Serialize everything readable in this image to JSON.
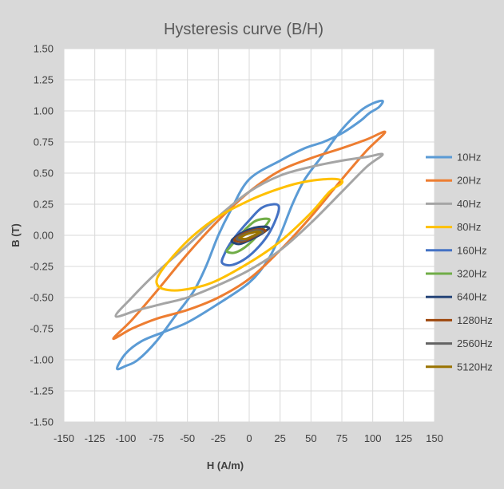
{
  "chart_data": {
    "type": "line",
    "title": "Hysteresis curve (B/H)",
    "xlabel": "H (A/m)",
    "ylabel": "B (T)",
    "xlim": [
      -150,
      150
    ],
    "ylim": [
      -1.5,
      1.5
    ],
    "x_ticks": [
      "-150",
      "-125",
      "-100",
      "-75",
      "-50",
      "-25",
      "0",
      "25",
      "50",
      "75",
      "100",
      "125",
      "150"
    ],
    "y_ticks": [
      "1.50",
      "1.25",
      "1.00",
      "0.75",
      "0.50",
      "0.25",
      "0.00",
      "-0.25",
      "-0.50",
      "-0.75",
      "-1.00",
      "-1.25",
      "-1.50"
    ],
    "grid": true,
    "legend_position": "right",
    "series": [
      {
        "name": "10Hz",
        "color": "#5b9bd5",
        "points": [
          [
            -107,
            -1.07
          ],
          [
            -100,
            -0.95
          ],
          [
            -87,
            -0.85
          ],
          [
            -70,
            -0.78
          ],
          [
            -50,
            -0.7
          ],
          [
            -25,
            -0.55
          ],
          [
            0,
            -0.38
          ],
          [
            15,
            -0.2
          ],
          [
            25,
            0.0
          ],
          [
            35,
            0.25
          ],
          [
            45,
            0.45
          ],
          [
            60,
            0.65
          ],
          [
            75,
            0.85
          ],
          [
            90,
            1.0
          ],
          [
            100,
            1.06
          ],
          [
            108,
            1.08
          ],
          [
            105,
            1.03
          ],
          [
            97,
            0.98
          ],
          [
            90,
            0.92
          ],
          [
            75,
            0.82
          ],
          [
            60,
            0.75
          ],
          [
            45,
            0.7
          ],
          [
            25,
            0.6
          ],
          [
            0,
            0.45
          ],
          [
            -15,
            0.2
          ],
          [
            -25,
            0.0
          ],
          [
            -35,
            -0.25
          ],
          [
            -45,
            -0.45
          ],
          [
            -60,
            -0.65
          ],
          [
            -75,
            -0.85
          ],
          [
            -90,
            -1.0
          ],
          [
            -100,
            -1.05
          ],
          [
            -107,
            -1.07
          ]
        ]
      },
      {
        "name": "20Hz",
        "color": "#ed7d31",
        "points": [
          [
            -110,
            -0.83
          ],
          [
            -95,
            -0.75
          ],
          [
            -75,
            -0.67
          ],
          [
            -50,
            -0.6
          ],
          [
            -25,
            -0.5
          ],
          [
            0,
            -0.35
          ],
          [
            25,
            -0.12
          ],
          [
            50,
            0.15
          ],
          [
            75,
            0.45
          ],
          [
            95,
            0.68
          ],
          [
            110,
            0.83
          ],
          [
            95,
            0.77
          ],
          [
            75,
            0.7
          ],
          [
            50,
            0.62
          ],
          [
            25,
            0.52
          ],
          [
            0,
            0.35
          ],
          [
            -25,
            0.12
          ],
          [
            -50,
            -0.15
          ],
          [
            -75,
            -0.45
          ],
          [
            -95,
            -0.68
          ],
          [
            -110,
            -0.83
          ]
        ]
      },
      {
        "name": "40Hz",
        "color": "#a5a5a5",
        "points": [
          [
            -108,
            -0.65
          ],
          [
            -90,
            -0.6
          ],
          [
            -70,
            -0.55
          ],
          [
            -50,
            -0.5
          ],
          [
            -25,
            -0.4
          ],
          [
            0,
            -0.28
          ],
          [
            25,
            -0.12
          ],
          [
            50,
            0.1
          ],
          [
            75,
            0.35
          ],
          [
            95,
            0.55
          ],
          [
            108,
            0.65
          ],
          [
            95,
            0.63
          ],
          [
            75,
            0.6
          ],
          [
            50,
            0.55
          ],
          [
            25,
            0.48
          ],
          [
            0,
            0.35
          ],
          [
            -25,
            0.15
          ],
          [
            -50,
            -0.08
          ],
          [
            -75,
            -0.3
          ],
          [
            -95,
            -0.5
          ],
          [
            -108,
            -0.65
          ]
        ]
      },
      {
        "name": "80Hz",
        "color": "#ffc000",
        "points": [
          [
            -75,
            -0.38
          ],
          [
            -70,
            -0.43
          ],
          [
            -55,
            -0.44
          ],
          [
            -30,
            -0.38
          ],
          [
            0,
            -0.22
          ],
          [
            25,
            -0.05
          ],
          [
            50,
            0.18
          ],
          [
            65,
            0.35
          ],
          [
            75,
            0.42
          ],
          [
            72,
            0.45
          ],
          [
            60,
            0.45
          ],
          [
            40,
            0.42
          ],
          [
            20,
            0.36
          ],
          [
            0,
            0.28
          ],
          [
            -25,
            0.15
          ],
          [
            -45,
            0.0
          ],
          [
            -60,
            -0.15
          ],
          [
            -72,
            -0.3
          ],
          [
            -75,
            -0.38
          ]
        ]
      },
      {
        "name": "160Hz",
        "color": "#4472c4",
        "points": [
          [
            -22,
            -0.22
          ],
          [
            -15,
            -0.24
          ],
          [
            -5,
            -0.2
          ],
          [
            5,
            -0.12
          ],
          [
            15,
            0.0
          ],
          [
            22,
            0.14
          ],
          [
            24,
            0.23
          ],
          [
            20,
            0.25
          ],
          [
            10,
            0.22
          ],
          [
            0,
            0.12
          ],
          [
            -8,
            0.03
          ],
          [
            -15,
            -0.06
          ],
          [
            -20,
            -0.15
          ],
          [
            -22,
            -0.22
          ]
        ]
      },
      {
        "name": "320Hz",
        "color": "#70ad47",
        "points": [
          [
            -18,
            -0.13
          ],
          [
            -12,
            -0.14
          ],
          [
            -4,
            -0.1
          ],
          [
            4,
            -0.03
          ],
          [
            10,
            0.04
          ],
          [
            15,
            0.1
          ],
          [
            16,
            0.13
          ],
          [
            10,
            0.13
          ],
          [
            4,
            0.11
          ],
          [
            -4,
            0.04
          ],
          [
            -10,
            -0.03
          ],
          [
            -16,
            -0.1
          ],
          [
            -18,
            -0.13
          ]
        ]
      },
      {
        "name": "640Hz",
        "color": "#264478",
        "points": [
          [
            -14,
            -0.05
          ],
          [
            -8,
            -0.07
          ],
          [
            0,
            -0.04
          ],
          [
            8,
            0.0
          ],
          [
            14,
            0.04
          ],
          [
            16,
            0.06
          ],
          [
            12,
            0.07
          ],
          [
            4,
            0.06
          ],
          [
            -4,
            0.03
          ],
          [
            -12,
            -0.02
          ],
          [
            -14,
            -0.05
          ]
        ]
      },
      {
        "name": "1280Hz",
        "color": "#9e480e",
        "points": [
          [
            -12,
            -0.04
          ],
          [
            -6,
            -0.05
          ],
          [
            0,
            -0.03
          ],
          [
            6,
            0.0
          ],
          [
            12,
            0.03
          ],
          [
            13,
            0.04
          ],
          [
            9,
            0.05
          ],
          [
            3,
            0.04
          ],
          [
            -3,
            0.02
          ],
          [
            -9,
            -0.01
          ],
          [
            -12,
            -0.04
          ]
        ]
      },
      {
        "name": "2560Hz",
        "color": "#636363",
        "points": [
          [
            -10,
            -0.03
          ],
          [
            -5,
            -0.04
          ],
          [
            0,
            -0.02
          ],
          [
            5,
            0.0
          ],
          [
            10,
            0.02
          ],
          [
            11,
            0.03
          ],
          [
            7,
            0.04
          ],
          [
            2,
            0.03
          ],
          [
            -3,
            0.01
          ],
          [
            -8,
            -0.01
          ],
          [
            -10,
            -0.03
          ]
        ]
      },
      {
        "name": "5120Hz",
        "color": "#997300",
        "points": [
          [
            -8,
            -0.02
          ],
          [
            -4,
            -0.03
          ],
          [
            0,
            -0.02
          ],
          [
            4,
            0.0
          ],
          [
            8,
            0.02
          ],
          [
            9,
            0.025
          ],
          [
            6,
            0.03
          ],
          [
            2,
            0.02
          ],
          [
            -2,
            0.01
          ],
          [
            -6,
            -0.01
          ],
          [
            -8,
            -0.02
          ]
        ]
      }
    ]
  }
}
